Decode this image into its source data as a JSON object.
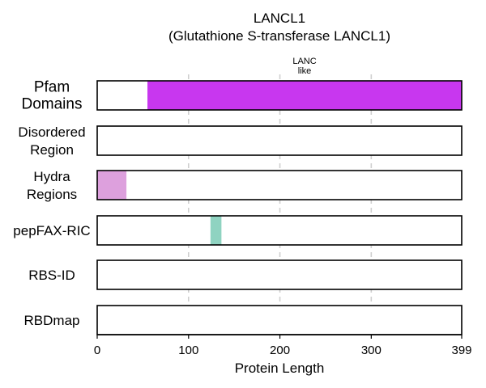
{
  "chart_data": {
    "type": "bar",
    "title": "LANCL1",
    "subtitle": "(Glutathione S-transferase LANCL1)",
    "xlabel": "Protein Length",
    "xlim": [
      0,
      399
    ],
    "xticks": [
      0,
      100,
      200,
      300,
      399
    ],
    "grid": "vertical dashed at x ticks",
    "tracks": [
      {
        "label_lines": [
          "Pfam",
          "Domains"
        ],
        "segments": [
          {
            "start": 55,
            "end": 399,
            "color": "#c837ef",
            "label_lines": [
              "LANC",
              "like"
            ]
          }
        ]
      },
      {
        "label_lines": [
          "Disordered",
          "Region"
        ],
        "segments": []
      },
      {
        "label_lines": [
          "Hydra",
          "Regions"
        ],
        "segments": [
          {
            "start": 0,
            "end": 32,
            "color": "#dda0dd"
          }
        ]
      },
      {
        "label_lines": [
          "pepFAX-RIC"
        ],
        "segments": [
          {
            "start": 124,
            "end": 136,
            "color": "#8fd3c1"
          }
        ]
      },
      {
        "label_lines": [
          "RBS-ID"
        ],
        "segments": []
      },
      {
        "label_lines": [
          "RBDmap"
        ],
        "segments": []
      }
    ]
  }
}
